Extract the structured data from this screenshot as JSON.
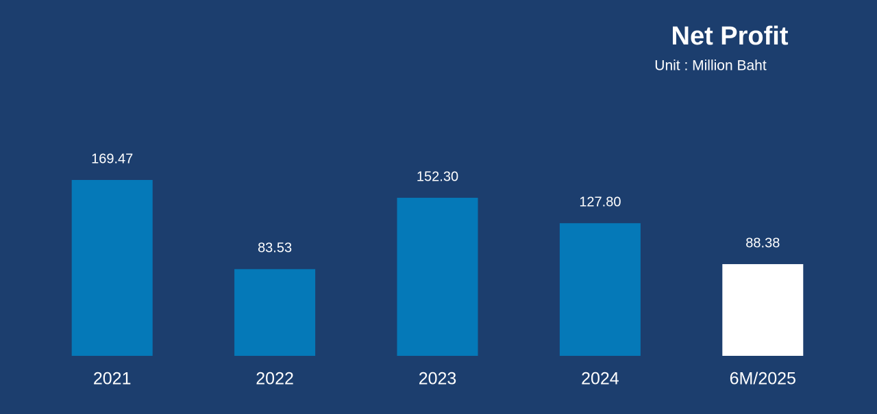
{
  "chart_data": {
    "type": "bar",
    "title": "Net Profit",
    "subtitle": "Unit : Million Baht",
    "categories": [
      "2021",
      "2022",
      "2023",
      "2024",
      "6M/2025"
    ],
    "values": [
      169.47,
      83.53,
      152.3,
      127.8,
      88.38
    ],
    "value_labels": [
      "169.47",
      "83.53",
      "152.30",
      "127.80",
      "88.38"
    ],
    "colors": [
      "#0579b8",
      "#0579b8",
      "#0579b8",
      "#0579b8",
      "#ffffff"
    ]
  }
}
